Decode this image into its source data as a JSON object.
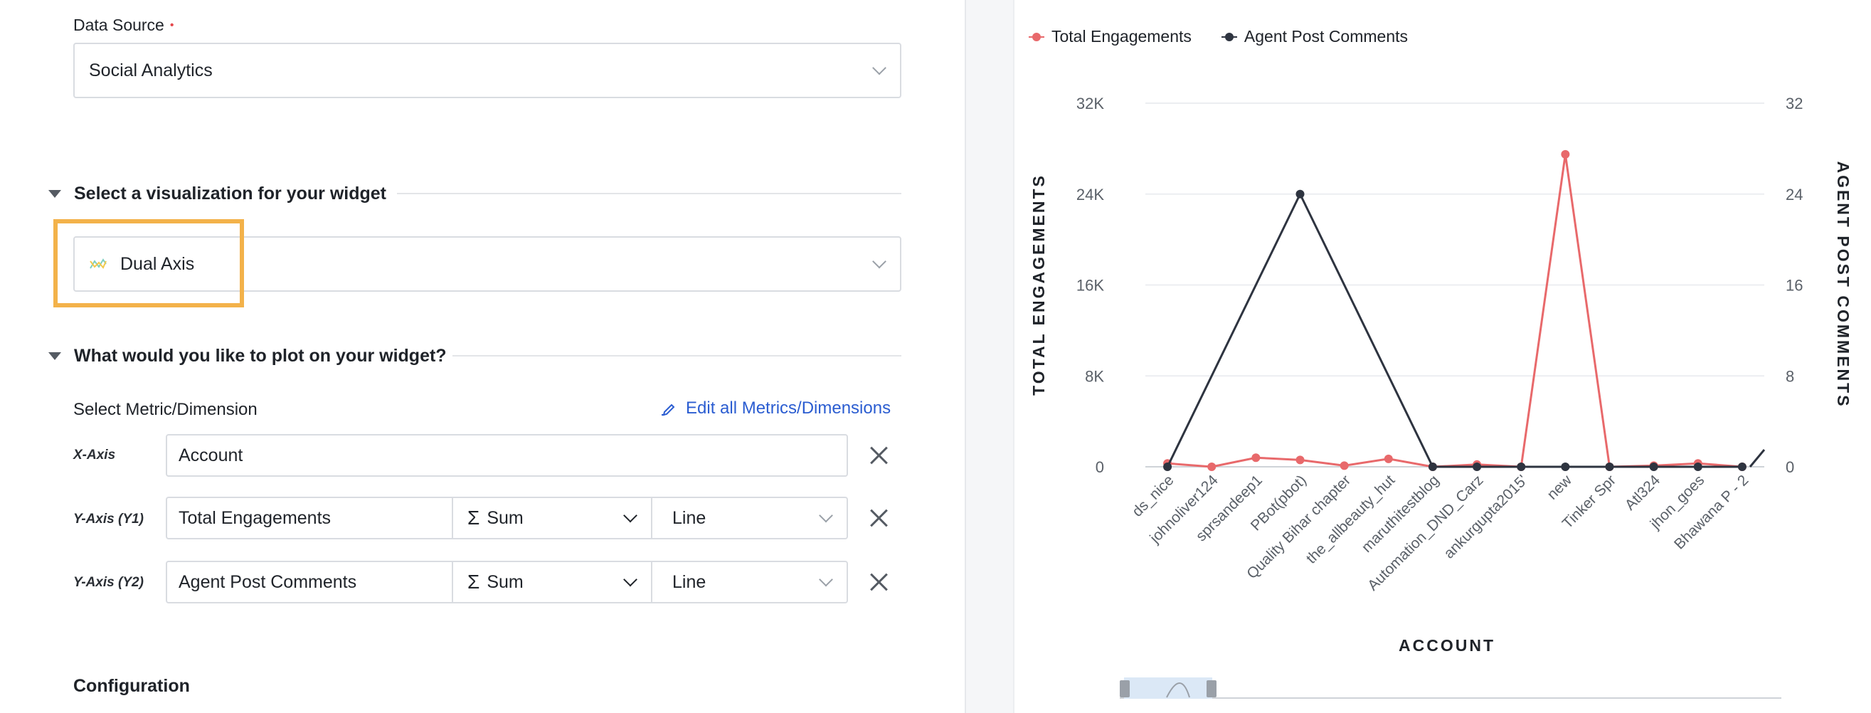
{
  "form": {
    "data_source": {
      "label": "Data Source",
      "required_mark": "•",
      "value": "Social Analytics"
    },
    "visualization": {
      "heading": "Select a visualization for your widget",
      "value": "Dual Axis"
    },
    "plot": {
      "heading": "What would you like to plot on your widget?",
      "metric_label": "Select Metric/Dimension",
      "edit_link": "Edit all Metrics/Dimensions",
      "x_axis": {
        "label": "X-Axis",
        "value": "Account"
      },
      "y1": {
        "label": "Y-Axis (Y1)",
        "metric": "Total Engagements",
        "agg_symbol": "Σ",
        "agg": "Sum",
        "chart": "Line"
      },
      "y2": {
        "label": "Y-Axis (Y2)",
        "metric": "Agent Post Comments",
        "agg_symbol": "Σ",
        "agg": "Sum",
        "chart": "Line"
      }
    },
    "configuration": {
      "heading": "Configuration"
    }
  },
  "colors": {
    "highlight": "#f3b24a",
    "series1": "#e8696b",
    "series2": "#2e3440",
    "link": "#2b5dd1"
  },
  "chart_data": {
    "type": "line",
    "xlabel": "ACCOUNT",
    "ylabel_left": "TOTAL ENGAGEMENTS",
    "ylabel_right": "AGENT POST COMMENTS",
    "categories": [
      "ds_nice",
      "johnoliver124",
      "sprsandeep1",
      "PBot(pbot)",
      "Quality Bihar chapter",
      "the_allbeauty_hut",
      "maruthitestblog",
      "Automation_DND_Carz",
      "ankurgupta2015'",
      "new",
      "Tinker Spr",
      "Atl324",
      "jhon_goes",
      "Bhawana P - 2"
    ],
    "left_ticks": [
      "0",
      "8K",
      "16K",
      "24K",
      "32K"
    ],
    "right_ticks": [
      "0",
      "8",
      "16",
      "24",
      "32"
    ],
    "ylim_left": [
      0,
      32000
    ],
    "ylim_right": [
      0,
      32
    ],
    "series": [
      {
        "name": "Total Engagements",
        "axis": "left",
        "values": [
          300,
          0,
          800,
          600,
          100,
          700,
          0,
          200,
          0,
          27500,
          0,
          100,
          300,
          0
        ]
      },
      {
        "name": "Agent Post Comments",
        "axis": "right",
        "values": [
          0,
          null,
          null,
          24,
          null,
          null,
          0,
          0,
          0,
          0,
          0,
          0,
          0,
          0
        ]
      }
    ],
    "legend_position": "top-left",
    "grid": true
  }
}
